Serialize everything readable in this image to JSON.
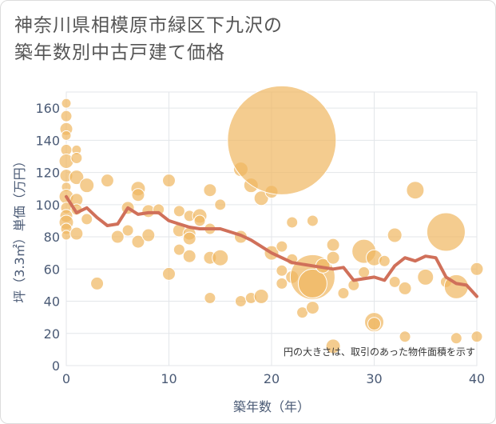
{
  "title_line1": "神奈川県相模原市緑区下九沢の",
  "title_line2": "築年数別中古戸建て価格",
  "chart_data": {
    "type": "scatter",
    "title": "神奈川県相模原市緑区下九沢の築年数別中古戸建て価格",
    "xlabel": "築年数（年）",
    "ylabel": "坪（3.3㎡）単価（万円）",
    "xlim": [
      0,
      40
    ],
    "ylim": [
      0,
      170
    ],
    "x_ticks": [
      0,
      10,
      20,
      30,
      40
    ],
    "y_ticks": [
      0,
      20,
      40,
      60,
      80,
      100,
      120,
      140,
      160
    ],
    "grid": true,
    "annotation": "円の大きさは、取引のあった物件面積を示す",
    "colors": {
      "bubble": "#f0b660",
      "line": "#d0705a",
      "grid": "#e3e6ea",
      "text": "#4a5a75"
    },
    "bubbles": [
      {
        "x": 0,
        "y": 163,
        "s": 6
      },
      {
        "x": 0,
        "y": 155,
        "s": 7
      },
      {
        "x": 0,
        "y": 147,
        "s": 8
      },
      {
        "x": 0,
        "y": 143,
        "s": 6
      },
      {
        "x": 0,
        "y": 134,
        "s": 7
      },
      {
        "x": 0,
        "y": 127,
        "s": 9
      },
      {
        "x": 0,
        "y": 118,
        "s": 8
      },
      {
        "x": 0,
        "y": 111,
        "s": 6
      },
      {
        "x": 0,
        "y": 105,
        "s": 9
      },
      {
        "x": 0,
        "y": 98,
        "s": 7
      },
      {
        "x": 0,
        "y": 93,
        "s": 8
      },
      {
        "x": 0,
        "y": 89,
        "s": 9
      },
      {
        "x": 0,
        "y": 85,
        "s": 7
      },
      {
        "x": 0,
        "y": 81,
        "s": 6
      },
      {
        "x": 1,
        "y": 134,
        "s": 6
      },
      {
        "x": 1,
        "y": 129,
        "s": 7
      },
      {
        "x": 1,
        "y": 117,
        "s": 9
      },
      {
        "x": 1,
        "y": 103,
        "s": 8
      },
      {
        "x": 1,
        "y": 97,
        "s": 7
      },
      {
        "x": 1,
        "y": 82,
        "s": 8
      },
      {
        "x": 2,
        "y": 112,
        "s": 9
      },
      {
        "x": 2,
        "y": 91,
        "s": 7
      },
      {
        "x": 3,
        "y": 51,
        "s": 8
      },
      {
        "x": 4,
        "y": 115,
        "s": 8
      },
      {
        "x": 5,
        "y": 80,
        "s": 8
      },
      {
        "x": 6,
        "y": 98,
        "s": 8
      },
      {
        "x": 6,
        "y": 84,
        "s": 7
      },
      {
        "x": 7,
        "y": 110,
        "s": 9
      },
      {
        "x": 7,
        "y": 106,
        "s": 8
      },
      {
        "x": 7,
        "y": 77,
        "s": 8
      },
      {
        "x": 8,
        "y": 96,
        "s": 8
      },
      {
        "x": 8,
        "y": 81,
        "s": 8
      },
      {
        "x": 9,
        "y": 97,
        "s": 7
      },
      {
        "x": 10,
        "y": 115,
        "s": 8
      },
      {
        "x": 10,
        "y": 57,
        "s": 8
      },
      {
        "x": 11,
        "y": 96,
        "s": 7
      },
      {
        "x": 11,
        "y": 84,
        "s": 8
      },
      {
        "x": 11,
        "y": 72,
        "s": 7
      },
      {
        "x": 12,
        "y": 93,
        "s": 7
      },
      {
        "x": 12,
        "y": 82,
        "s": 8
      },
      {
        "x": 12,
        "y": 79,
        "s": 8
      },
      {
        "x": 12,
        "y": 68,
        "s": 8
      },
      {
        "x": 13,
        "y": 93,
        "s": 9
      },
      {
        "x": 13,
        "y": 90,
        "s": 7
      },
      {
        "x": 14,
        "y": 109,
        "s": 8
      },
      {
        "x": 14,
        "y": 85,
        "s": 7
      },
      {
        "x": 14,
        "y": 67,
        "s": 8
      },
      {
        "x": 14,
        "y": 42,
        "s": 7
      },
      {
        "x": 15,
        "y": 100,
        "s": 7
      },
      {
        "x": 15,
        "y": 67,
        "s": 10
      },
      {
        "x": 17,
        "y": 122,
        "s": 9
      },
      {
        "x": 17,
        "y": 80,
        "s": 8
      },
      {
        "x": 17,
        "y": 40,
        "s": 7
      },
      {
        "x": 18,
        "y": 112,
        "s": 9
      },
      {
        "x": 18,
        "y": 42,
        "s": 7
      },
      {
        "x": 19,
        "y": 104,
        "s": 9
      },
      {
        "x": 19,
        "y": 43,
        "s": 9
      },
      {
        "x": 20,
        "y": 108,
        "s": 8
      },
      {
        "x": 20,
        "y": 70,
        "s": 9
      },
      {
        "x": 21,
        "y": 140,
        "s": 68
      },
      {
        "x": 21,
        "y": 74,
        "s": 7
      },
      {
        "x": 21,
        "y": 59,
        "s": 7
      },
      {
        "x": 21,
        "y": 51,
        "s": 7
      },
      {
        "x": 22,
        "y": 89,
        "s": 7
      },
      {
        "x": 22,
        "y": 66,
        "s": 7
      },
      {
        "x": 22,
        "y": 55,
        "s": 8
      },
      {
        "x": 23,
        "y": 33,
        "s": 7
      },
      {
        "x": 24,
        "y": 90,
        "s": 7
      },
      {
        "x": 24,
        "y": 55,
        "s": 28
      },
      {
        "x": 24,
        "y": 51,
        "s": 18
      },
      {
        "x": 24,
        "y": 36,
        "s": 8
      },
      {
        "x": 25,
        "y": 62,
        "s": 9
      },
      {
        "x": 26,
        "y": 75,
        "s": 8
      },
      {
        "x": 26,
        "y": 67,
        "s": 8
      },
      {
        "x": 26,
        "y": 12,
        "s": 9
      },
      {
        "x": 27,
        "y": 45,
        "s": 7
      },
      {
        "x": 28,
        "y": 50,
        "s": 7
      },
      {
        "x": 29,
        "y": 71,
        "s": 15
      },
      {
        "x": 29,
        "y": 58,
        "s": 7
      },
      {
        "x": 30,
        "y": 67,
        "s": 10
      },
      {
        "x": 30,
        "y": 27,
        "s": 12
      },
      {
        "x": 30,
        "y": 26,
        "s": 8
      },
      {
        "x": 31,
        "y": 65,
        "s": 7
      },
      {
        "x": 32,
        "y": 81,
        "s": 9
      },
      {
        "x": 32,
        "y": 52,
        "s": 7
      },
      {
        "x": 33,
        "y": 48,
        "s": 8
      },
      {
        "x": 33,
        "y": 18,
        "s": 7
      },
      {
        "x": 34,
        "y": 109,
        "s": 11
      },
      {
        "x": 35,
        "y": 55,
        "s": 10
      },
      {
        "x": 37,
        "y": 83,
        "s": 24
      },
      {
        "x": 37,
        "y": 52,
        "s": 7
      },
      {
        "x": 38,
        "y": 49,
        "s": 15
      },
      {
        "x": 38,
        "y": 17,
        "s": 7
      },
      {
        "x": 40,
        "y": 60,
        "s": 8
      },
      {
        "x": 40,
        "y": 18,
        "s": 7
      }
    ],
    "series": [
      {
        "x": [
          0,
          1,
          2,
          3,
          4,
          5,
          6,
          7,
          8,
          9,
          10,
          11,
          12,
          13,
          14,
          15,
          16,
          17,
          18,
          19,
          20,
          21,
          22,
          23,
          24,
          25,
          26,
          27,
          28,
          29,
          30,
          31,
          32,
          33,
          34,
          35,
          36,
          37,
          38,
          39,
          40
        ],
        "values": [
          105,
          95,
          98,
          92,
          87,
          88,
          98,
          94,
          95,
          95,
          90,
          88,
          86,
          85,
          85,
          85,
          83,
          81,
          78,
          74,
          70,
          67,
          64,
          63,
          62,
          61,
          60,
          61,
          53,
          54,
          55,
          53,
          62,
          67,
          65,
          68,
          67,
          55,
          51,
          50,
          43
        ]
      }
    ]
  }
}
